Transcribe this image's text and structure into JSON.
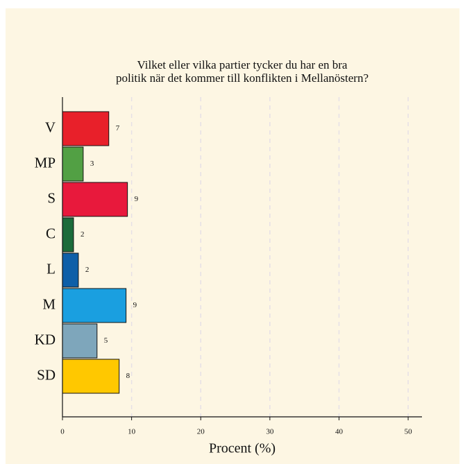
{
  "chart_data": {
    "type": "barh",
    "title": [
      "Vilket eller vilka partier tycker du har en bra",
      "politik när det kommer till konflikten i Mellanöstern?"
    ],
    "xlabel": "Procent (%)",
    "categories": [
      "V",
      "MP",
      "S",
      "C",
      "L",
      "M",
      "KD",
      "SD"
    ],
    "values": [
      6.7,
      3.0,
      9.4,
      1.6,
      2.3,
      9.2,
      5.0,
      8.2
    ],
    "value_labels": [
      "7",
      "3",
      "9",
      "2",
      "2",
      "9",
      "5",
      "8"
    ],
    "colors": [
      "#e8202a",
      "#52a044",
      "#e8193c",
      "#1b6b3a",
      "#0e5fa8",
      "#1a9fe0",
      "#7ea6bb",
      "#ffc800"
    ],
    "xlim": [
      0,
      52
    ],
    "xticks": [
      0,
      10,
      20,
      30,
      40,
      50
    ],
    "grid": true
  }
}
